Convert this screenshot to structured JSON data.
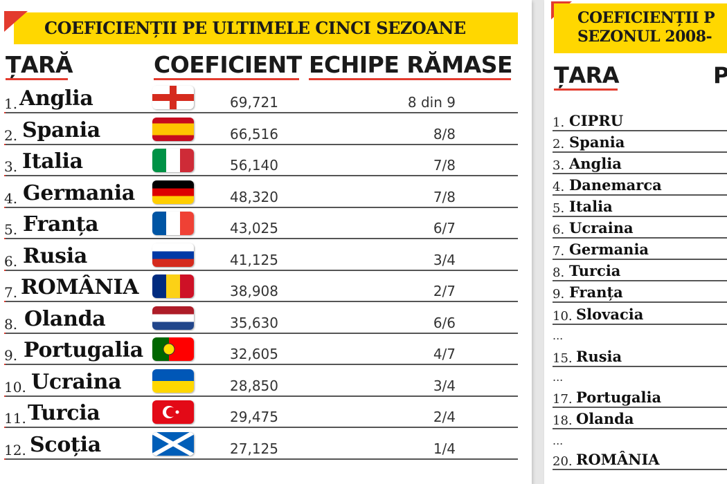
{
  "left_table": {
    "banner_title": "COEFICIENȚII PE ULTIMELE CINCI SEZOANE",
    "headers": {
      "country": "ȚARĂ",
      "coefficient": "COEFICIENT",
      "teams": "ECHIPE RĂMASE"
    },
    "rows": [
      {
        "rank": "1.",
        "country": "Anglia",
        "flag": "england-flag-icon",
        "coefficient": "69,721",
        "teams": "8 din 9"
      },
      {
        "rank": "2.",
        "country": "Spania",
        "flag": "spain-flag-icon",
        "coefficient": "66,516",
        "teams": "8/8"
      },
      {
        "rank": "3.",
        "country": "Italia",
        "flag": "italy-flag-icon",
        "coefficient": "56,140",
        "teams": "7/8"
      },
      {
        "rank": "4.",
        "country": "Germania",
        "flag": "germany-flag-icon",
        "coefficient": "48,320",
        "teams": "7/8"
      },
      {
        "rank": "5.",
        "country": "Franța",
        "flag": "france-flag-icon",
        "coefficient": "43,025",
        "teams": "6/7"
      },
      {
        "rank": "6.",
        "country": "Rusia",
        "flag": "russia-flag-icon",
        "coefficient": "41,125",
        "teams": "3/4"
      },
      {
        "rank": "7.",
        "country": "ROMÂNIA",
        "flag": "romania-flag-icon",
        "coefficient": "38,908",
        "teams": "2/7"
      },
      {
        "rank": "8.",
        "country": "Olanda",
        "flag": "netherlands-flag-icon",
        "coefficient": "35,630",
        "teams": "6/6"
      },
      {
        "rank": "9.",
        "country": "Portugalia",
        "flag": "portugal-flag-icon",
        "coefficient": "32,605",
        "teams": "4/7"
      },
      {
        "rank": "10.",
        "country": "Ucraina",
        "flag": "ukraine-flag-icon",
        "coefficient": "28,850",
        "teams": "3/4"
      },
      {
        "rank": "11.",
        "country": "Turcia",
        "flag": "turkey-flag-icon",
        "coefficient": "29,475",
        "teams": "2/4"
      },
      {
        "rank": "12.",
        "country": "Scoția",
        "flag": "scotland-flag-icon",
        "coefficient": "27,125",
        "teams": "1/4"
      }
    ]
  },
  "right_table": {
    "banner_line1": "COEFICIENȚII P",
    "banner_line2": "SEZONUL 2008-",
    "headers": {
      "country": "ȚARA",
      "partial": "P"
    },
    "rows": [
      {
        "rank": "1.",
        "country": "CIPRU"
      },
      {
        "rank": "2.",
        "country": "Spania"
      },
      {
        "rank": "3.",
        "country": "Anglia"
      },
      {
        "rank": "4.",
        "country": "Danemarca"
      },
      {
        "rank": "5.",
        "country": "Italia"
      },
      {
        "rank": "6.",
        "country": "Ucraina"
      },
      {
        "rank": "7.",
        "country": "Germania"
      },
      {
        "rank": "8.",
        "country": "Turcia"
      },
      {
        "rank": "9.",
        "country": "Franța"
      },
      {
        "rank": "10.",
        "country": "Slovacia"
      },
      {
        "dots": "..."
      },
      {
        "rank": "15.",
        "country": "Rusia"
      },
      {
        "dots": "..."
      },
      {
        "rank": "17.",
        "country": "Portugalia"
      },
      {
        "rank": "18.",
        "country": "Olanda"
      },
      {
        "dots": "..."
      },
      {
        "rank": "20.",
        "country": "ROMÂNIA"
      }
    ]
  },
  "colors": {
    "accent_red": "#e33b2e",
    "banner_yellow": "#ffd700"
  }
}
